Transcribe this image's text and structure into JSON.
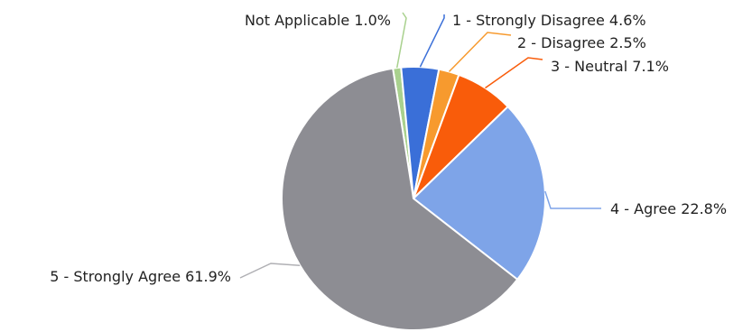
{
  "chart_data": {
    "type": "pie",
    "title": "",
    "slices": [
      {
        "label": "Not Applicable 1.0%",
        "category": "Not Applicable",
        "value": 1.0,
        "color": "#a9d18e"
      },
      {
        "label": "1 - Strongly Disagree 4.6%",
        "category": "1 - Strongly Disagree",
        "value": 4.6,
        "color": "#3a6fd8"
      },
      {
        "label": "2 - Disagree 2.5%",
        "category": "2 - Disagree",
        "value": 2.5,
        "color": "#f79a2e"
      },
      {
        "label": "3 - Neutral 7.1%",
        "category": "3 - Neutral",
        "value": 7.1,
        "color": "#f95c0a"
      },
      {
        "label": "4 - Agree 22.8%",
        "category": "4 - Agree",
        "value": 22.8,
        "color": "#7ea4e8"
      },
      {
        "label": "5 - Strongly Agree 61.9%",
        "category": "5 - Strongly Agree",
        "value": 61.9,
        "color": "#8d8d93"
      }
    ],
    "start_angle_deg": -9,
    "direction": "clockwise",
    "labels": "outside-with-leader-lines"
  }
}
